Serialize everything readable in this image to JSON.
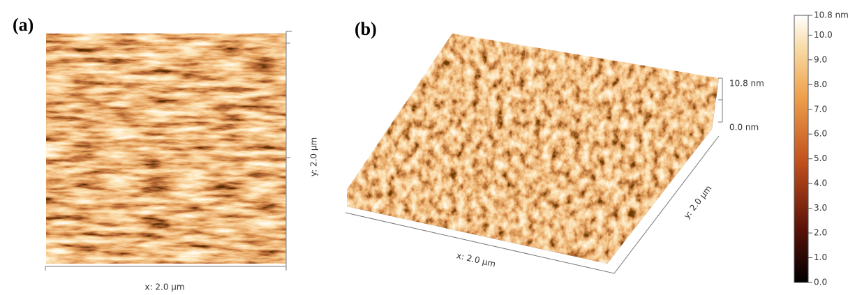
{
  "panels": [
    {
      "label": "(a)",
      "x_axis": "x: 2.0 µm",
      "y_axis": "y: 2.0 µm"
    },
    {
      "label": "(b)",
      "x_axis": "x: 2.0 µm",
      "y_axis": "y: 2.0 µm",
      "z_ticks": [
        "10.8 nm",
        "0.0 nm"
      ]
    }
  ],
  "colorbar": {
    "range": [
      0,
      10.8
    ],
    "ticks": [
      {
        "value": 10.8,
        "label": "10.8 nm"
      },
      {
        "value": 10,
        "label": "10.0"
      },
      {
        "value": 9,
        "label": "9.0"
      },
      {
        "value": 8,
        "label": "8.0"
      },
      {
        "value": 7,
        "label": "7.0"
      },
      {
        "value": 6,
        "label": "6.0"
      },
      {
        "value": 5,
        "label": "5.0"
      },
      {
        "value": 4,
        "label": "4.0"
      },
      {
        "value": 3,
        "label": "3.0"
      },
      {
        "value": 2,
        "label": "2.0"
      },
      {
        "value": 1,
        "label": "1.0"
      },
      {
        "value": 0,
        "label": "0.0"
      }
    ]
  }
}
